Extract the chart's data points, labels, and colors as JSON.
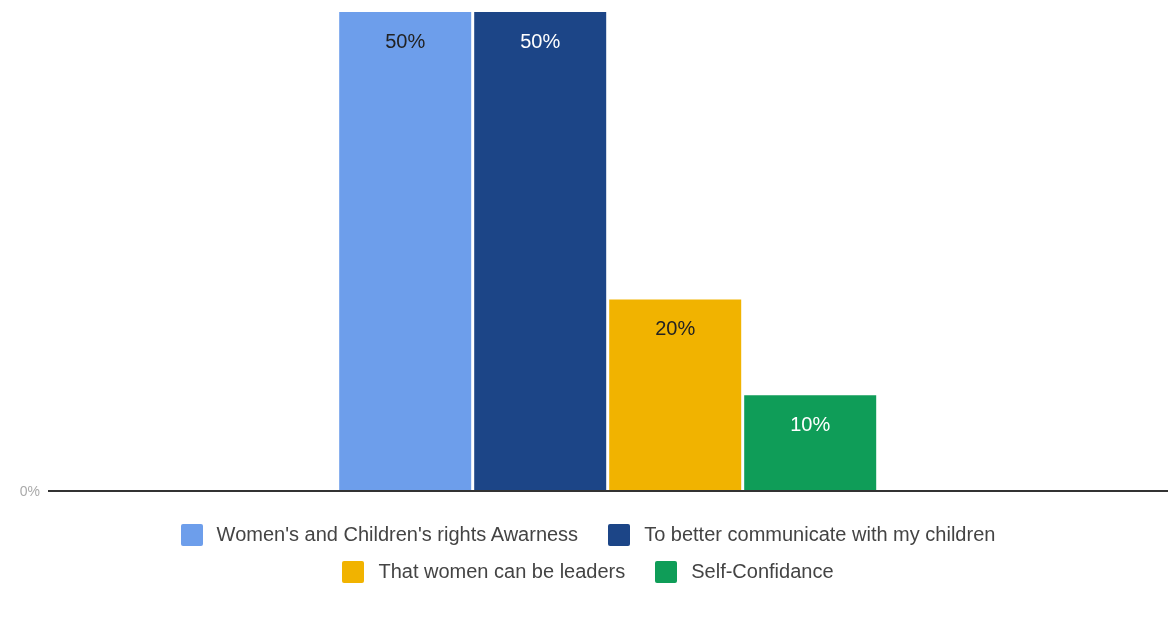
{
  "chart_data": {
    "type": "bar",
    "categories": [
      null
    ],
    "series": [
      {
        "name": "Women's and Children's rights Awarness",
        "color": "#6d9eeb",
        "values": [
          50
        ],
        "value_labels": [
          "50%"
        ]
      },
      {
        "name": "To better communicate with my children",
        "color": "#1c4587",
        "values": [
          50
        ],
        "value_labels": [
          "50%"
        ]
      },
      {
        "name": "That women can be leaders",
        "color": "#f1b300",
        "values": [
          20
        ],
        "value_labels": [
          "20%"
        ]
      },
      {
        "name": "Self-Confidance",
        "color": "#0f9d58",
        "values": [
          10
        ],
        "value_labels": [
          "10%"
        ]
      }
    ],
    "annotations": [
      "0%"
    ],
    "legend": "bottom"
  }
}
